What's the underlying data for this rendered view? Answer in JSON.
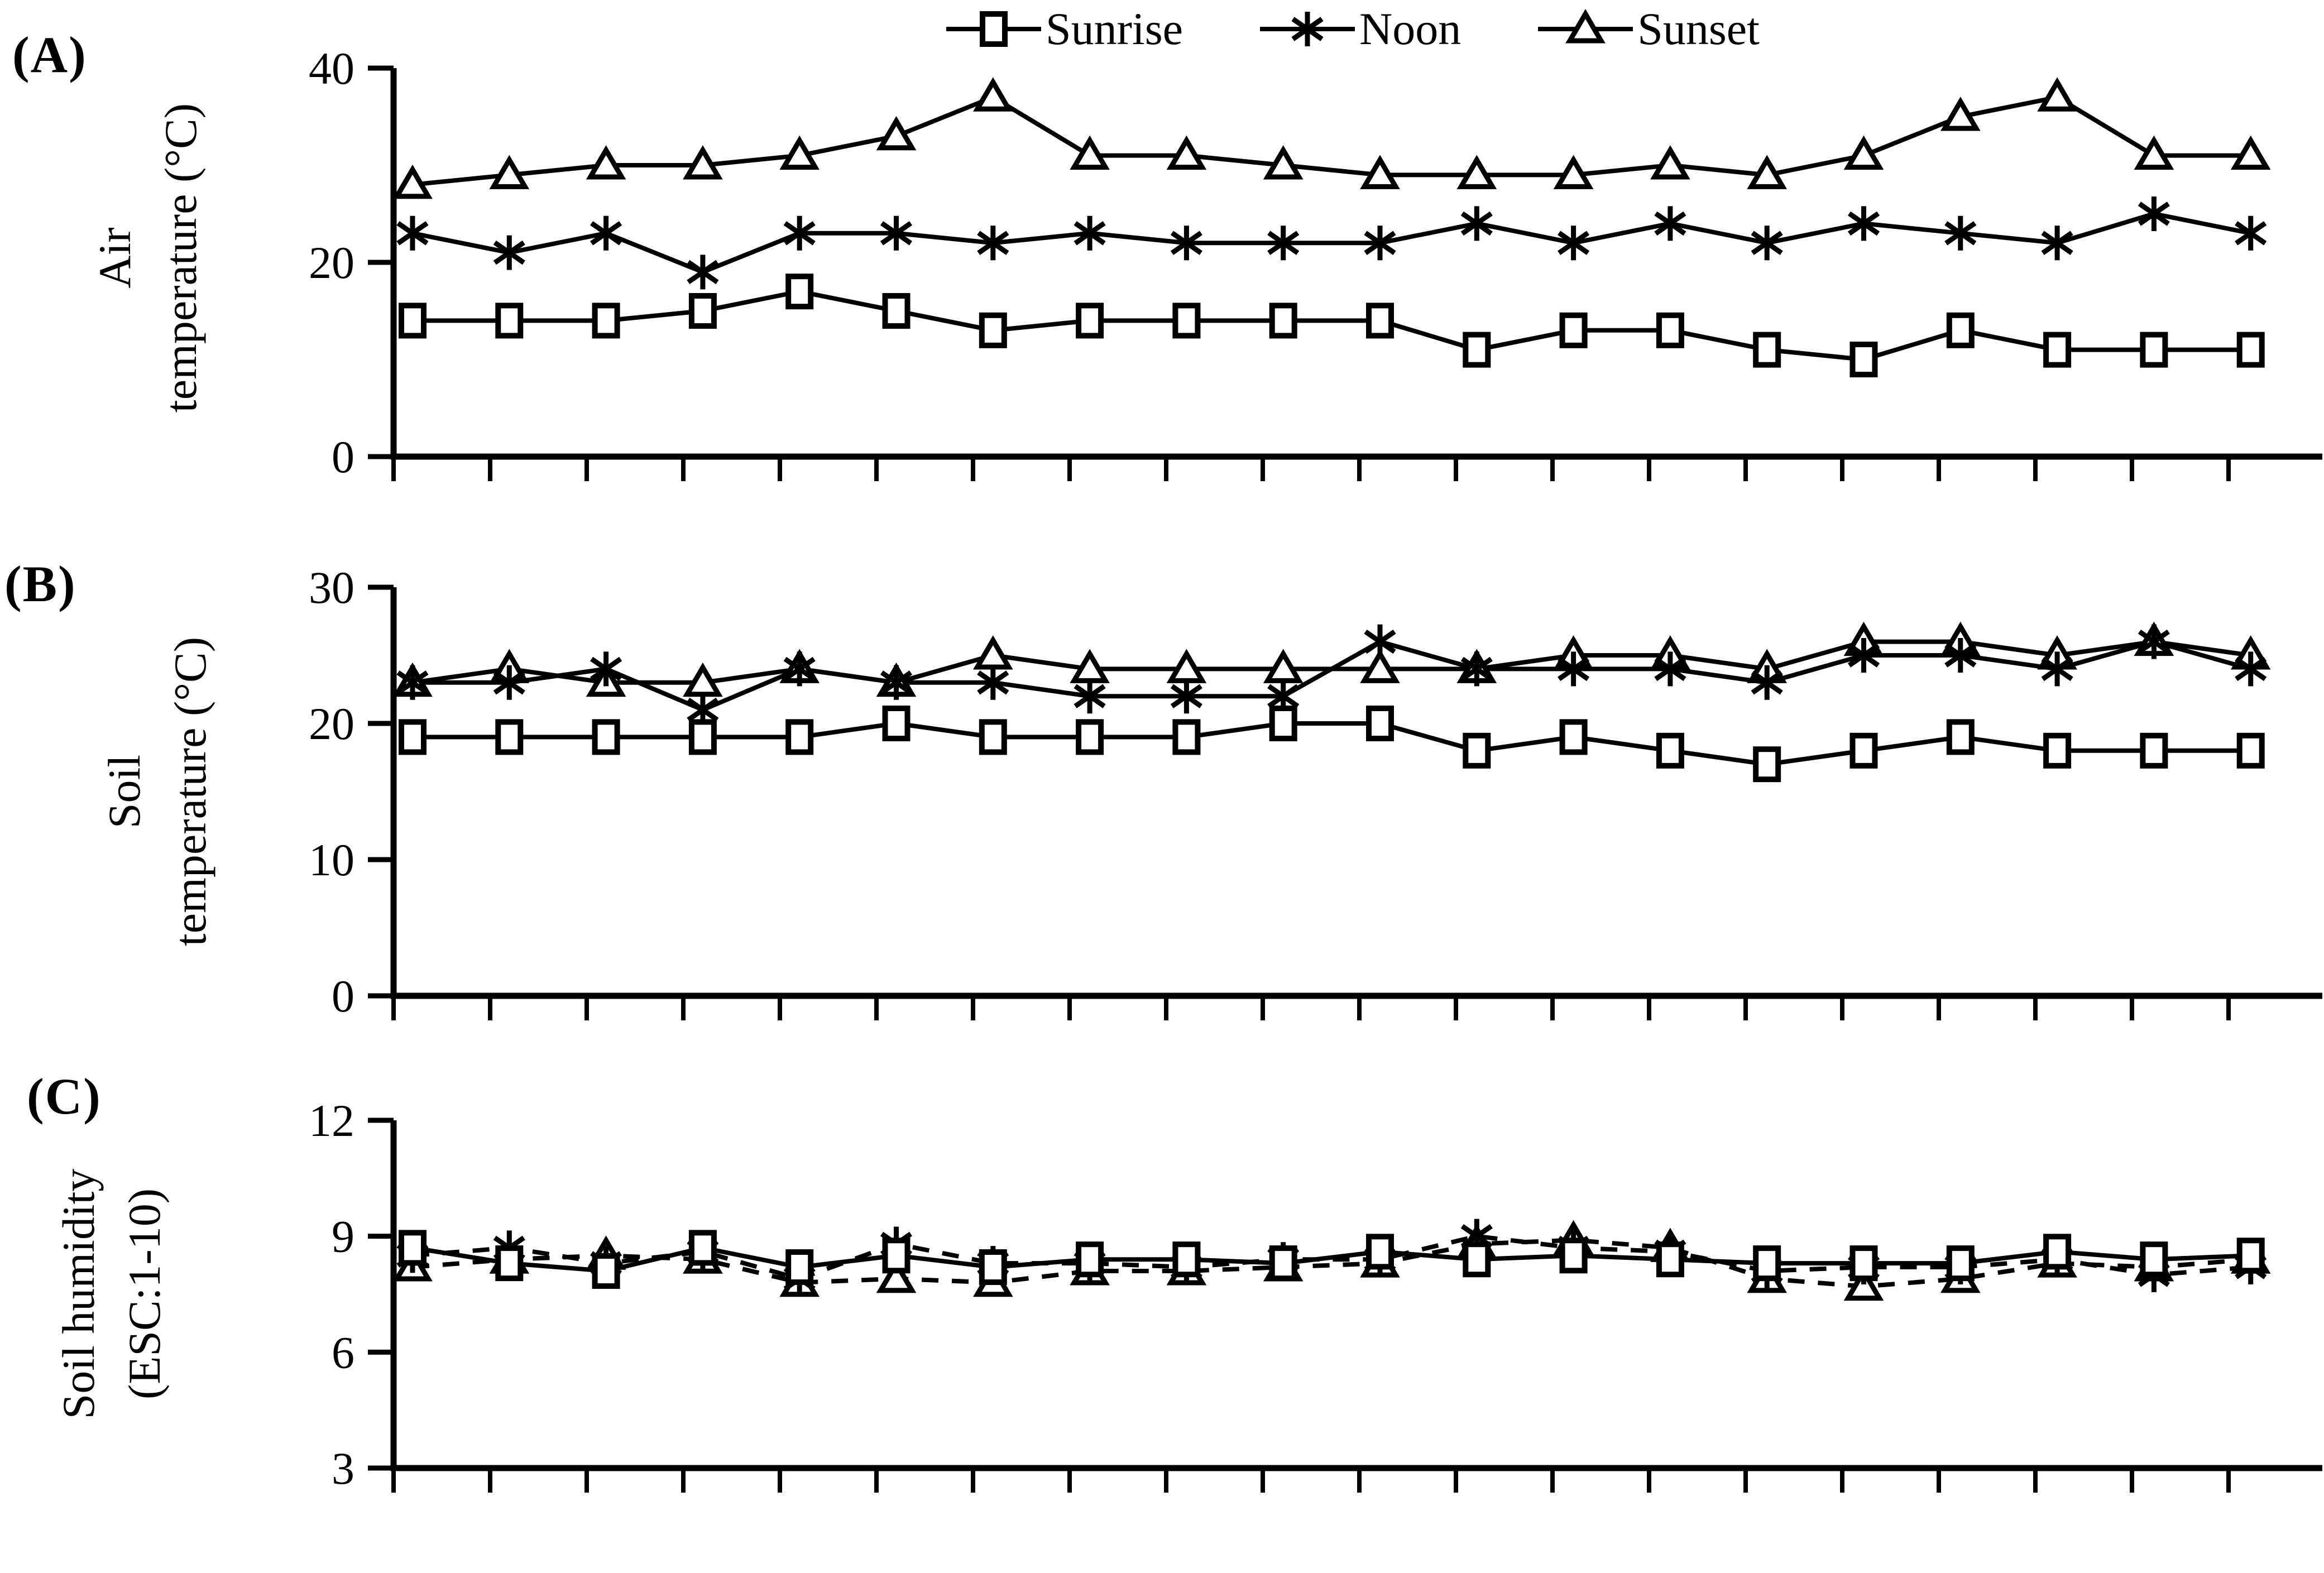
{
  "colors": {
    "ink": "#000000",
    "background": "#ffffff"
  },
  "legend": {
    "items": [
      {
        "label": "Sunrise",
        "marker": "square"
      },
      {
        "label": "Noon",
        "marker": "asterisk"
      },
      {
        "label": "Sunset",
        "marker": "triangle"
      }
    ]
  },
  "chart_data": [
    {
      "id": "A",
      "type": "line",
      "panel_tag": "(A)",
      "ylabel_lines": [
        "Air",
        "temperature (°C)"
      ],
      "ylim": [
        0,
        40
      ],
      "yticks": [
        0,
        20,
        40
      ],
      "x_axis": {
        "labels_visible": false,
        "tick_count": 21,
        "points_per_series": 20
      },
      "grid": false,
      "legend_position": "top-center",
      "series": [
        {
          "name": "Sunrise",
          "marker": "square",
          "line": "solid",
          "values": [
            14,
            14,
            14,
            15,
            17,
            15,
            13,
            14,
            14,
            14,
            14,
            11,
            13,
            13,
            11,
            10,
            13,
            11,
            11,
            11
          ]
        },
        {
          "name": "Noon",
          "marker": "asterisk",
          "line": "solid",
          "values": [
            23,
            21,
            23,
            19,
            23,
            23,
            22,
            23,
            22,
            22,
            22,
            24,
            22,
            24,
            22,
            24,
            23,
            22,
            25,
            23
          ]
        },
        {
          "name": "Sunset",
          "marker": "triangle",
          "line": "solid",
          "values": [
            28,
            29,
            30,
            30,
            31,
            33,
            37,
            31,
            31,
            30,
            29,
            29,
            29,
            30,
            29,
            31,
            35,
            37,
            31,
            31
          ]
        }
      ]
    },
    {
      "id": "B",
      "type": "line",
      "panel_tag": "(B)",
      "ylabel_lines": [
        "Soil",
        "temperature (°C)"
      ],
      "ylim": [
        0,
        30
      ],
      "yticks": [
        0,
        10,
        20,
        30
      ],
      "x_axis": {
        "labels_visible": false,
        "tick_count": 21,
        "points_per_series": 20
      },
      "grid": false,
      "series": [
        {
          "name": "Sunrise",
          "marker": "square",
          "line": "solid",
          "values": [
            19,
            19,
            19,
            19,
            19,
            20,
            19,
            19,
            19,
            20,
            20,
            18,
            19,
            18,
            17,
            18,
            19,
            18,
            18,
            18
          ]
        },
        {
          "name": "Noon",
          "marker": "asterisk",
          "line": "solid",
          "values": [
            23,
            23,
            24,
            21,
            24,
            23,
            23,
            22,
            22,
            22,
            26,
            24,
            24,
            24,
            23,
            25,
            25,
            24,
            26,
            24
          ]
        },
        {
          "name": "Sunset",
          "marker": "triangle",
          "line": "solid",
          "values": [
            23,
            24,
            23,
            23,
            24,
            23,
            25,
            24,
            24,
            24,
            24,
            24,
            25,
            25,
            24,
            26,
            26,
            25,
            26,
            25
          ]
        }
      ]
    },
    {
      "id": "C",
      "type": "line",
      "panel_tag": "(C)",
      "ylabel_lines": [
        "Soil humidity",
        "(ESC:1-10)"
      ],
      "ylim": [
        3,
        12
      ],
      "yticks": [
        3,
        6,
        9,
        12
      ],
      "x_axis": {
        "labels_visible": false,
        "tick_count": 21,
        "points_per_series": 20
      },
      "grid": false,
      "series": [
        {
          "name": "Sunrise",
          "marker": "square",
          "line": "solid",
          "values": [
            8.7,
            8.3,
            8.1,
            8.7,
            8.2,
            8.5,
            8.2,
            8.4,
            8.4,
            8.3,
            8.6,
            8.4,
            8.5,
            8.4,
            8.3,
            8.3,
            8.3,
            8.6,
            8.4,
            8.5
          ]
        },
        {
          "name": "Noon",
          "marker": "asterisk",
          "line": "dashed",
          "values": [
            8.5,
            8.7,
            8.3,
            8.6,
            7.9,
            8.8,
            8.3,
            8.3,
            8.2,
            8.4,
            8.4,
            9.0,
            8.7,
            8.6,
            8.1,
            8.2,
            8.2,
            8.4,
            8.0,
            8.2
          ]
        },
        {
          "name": "Sunset",
          "marker": "triangle",
          "line": "dashed",
          "values": [
            8.2,
            8.4,
            8.5,
            8.4,
            7.8,
            7.9,
            7.8,
            8.1,
            8.1,
            8.2,
            8.3,
            8.8,
            8.9,
            8.7,
            7.9,
            7.7,
            7.9,
            8.3,
            8.2,
            8.4
          ]
        }
      ]
    }
  ]
}
